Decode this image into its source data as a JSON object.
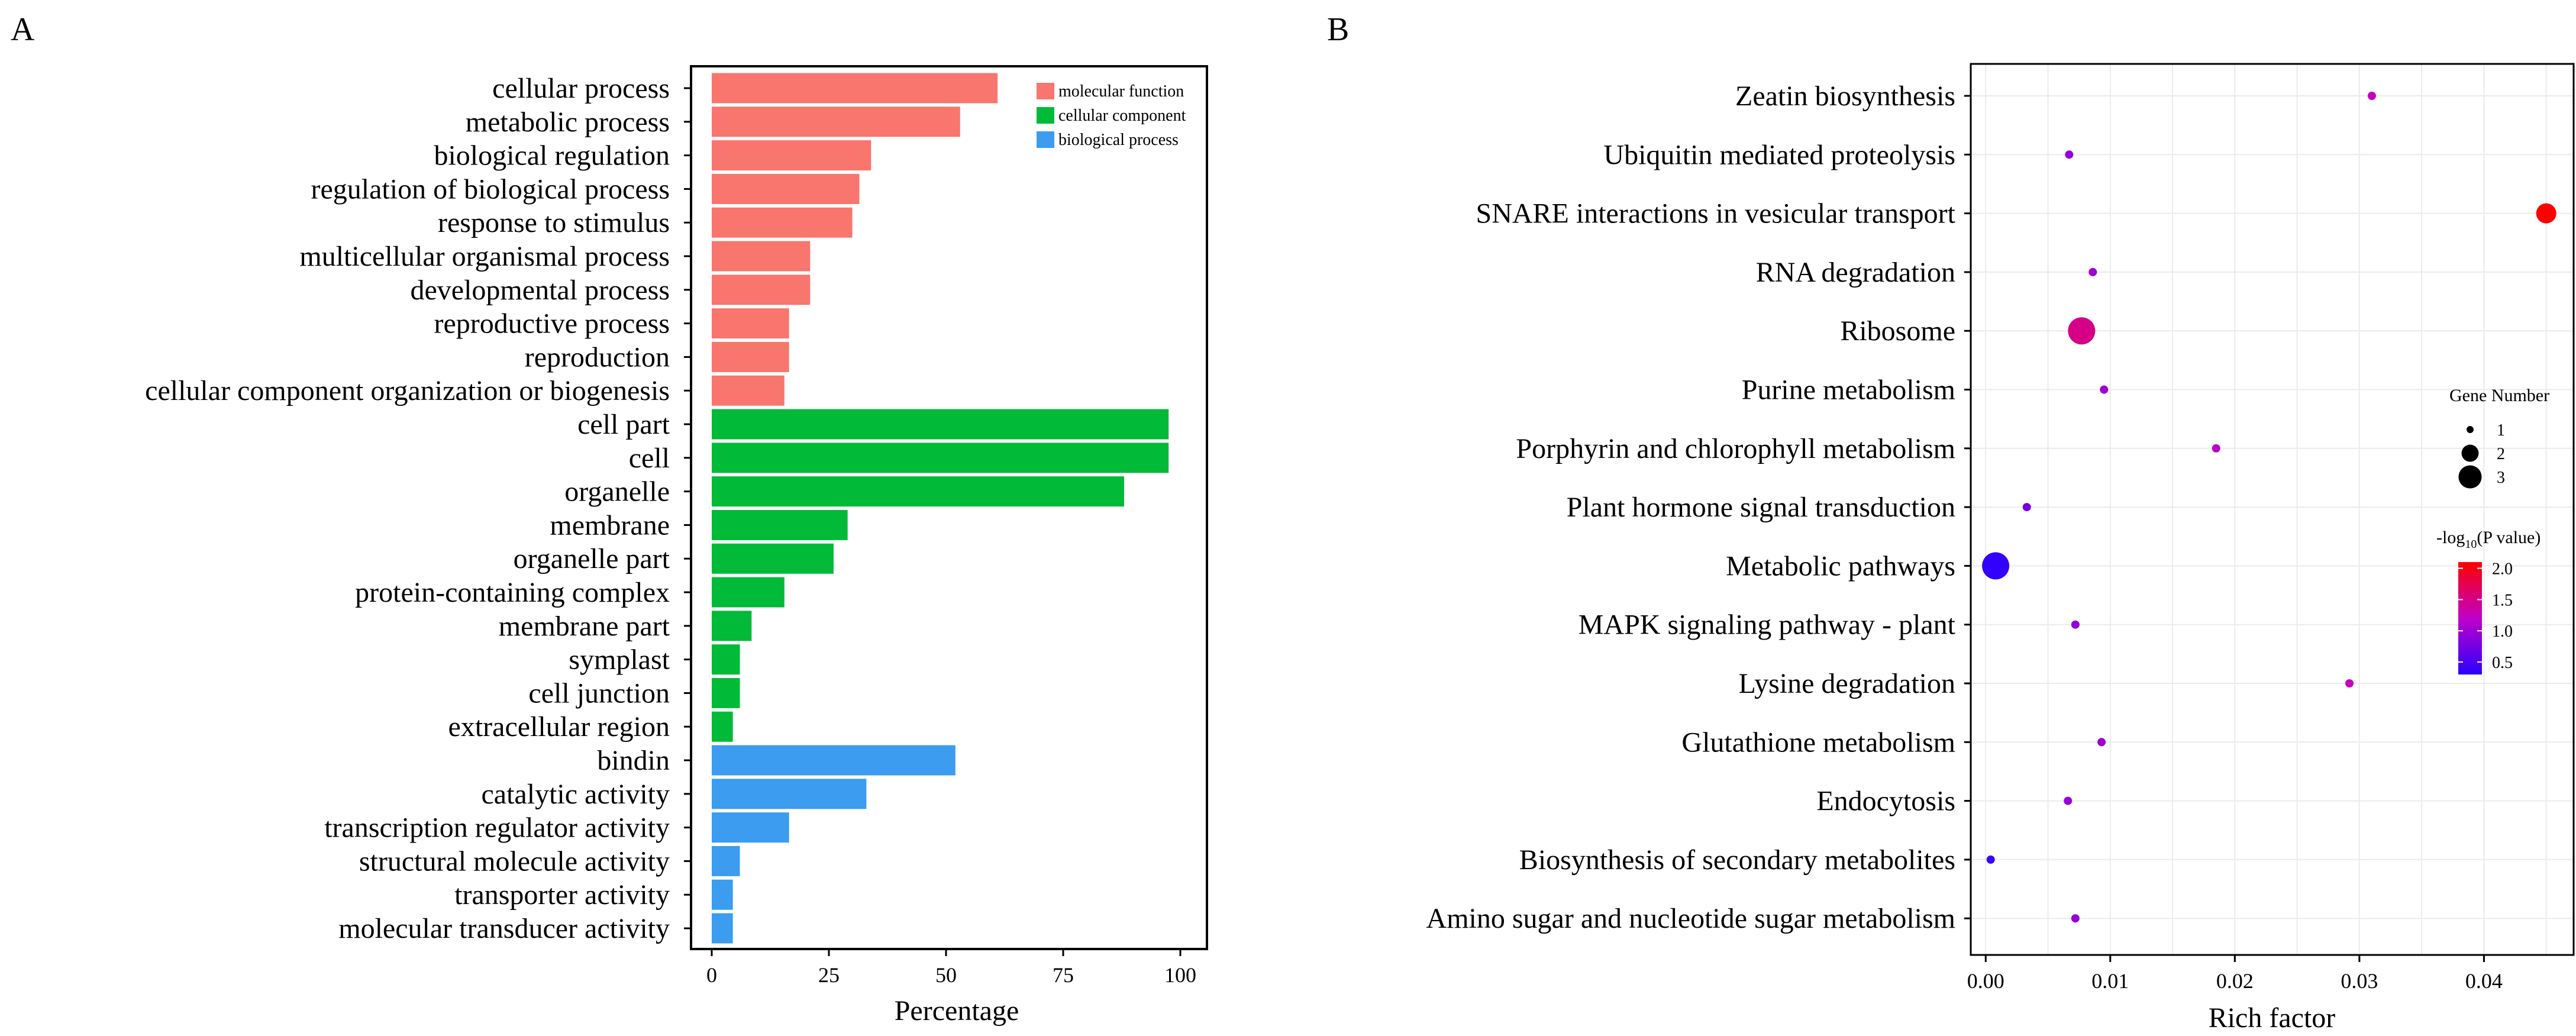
{
  "panels": {
    "a_letter": "A",
    "b_letter": "B"
  },
  "chart_data": [
    {
      "type": "bar",
      "orientation": "horizontal",
      "panel": "A",
      "xlabel": "Percentage",
      "xlim": [
        0,
        100
      ],
      "xticks": [
        0,
        25,
        50,
        75,
        100
      ],
      "legend": {
        "placement": "top-right",
        "entries": [
          {
            "label": "molecular function",
            "color": "#f8766d"
          },
          {
            "label": "cellular component",
            "color": "#00ba38"
          },
          {
            "label": "biological process",
            "color": "#3b9cf0"
          }
        ]
      },
      "bars": [
        {
          "category": "cellular process",
          "value": 61,
          "group": 0
        },
        {
          "category": "metabolic process",
          "value": 53,
          "group": 0
        },
        {
          "category": "biological regulation",
          "value": 34,
          "group": 0
        },
        {
          "category": "regulation of biological process",
          "value": 31.5,
          "group": 0
        },
        {
          "category": "response to stimulus",
          "value": 30,
          "group": 0
        },
        {
          "category": "multicellular organismal process",
          "value": 21,
          "group": 0
        },
        {
          "category": "developmental process",
          "value": 21,
          "group": 0
        },
        {
          "category": "reproductive process",
          "value": 16.5,
          "group": 0
        },
        {
          "category": "reproduction",
          "value": 16.5,
          "group": 0
        },
        {
          "category": "cellular component organization or biogenesis",
          "value": 15.5,
          "group": 0
        },
        {
          "category": "cell part",
          "value": 97.5,
          "group": 1
        },
        {
          "category": "cell",
          "value": 97.5,
          "group": 1
        },
        {
          "category": "organelle",
          "value": 88,
          "group": 1
        },
        {
          "category": "membrane",
          "value": 29,
          "group": 1
        },
        {
          "category": "organelle part",
          "value": 26,
          "group": 1
        },
        {
          "category": "protein-containing complex",
          "value": 15.5,
          "group": 1
        },
        {
          "category": "membrane part",
          "value": 8.5,
          "group": 1
        },
        {
          "category": "symplast",
          "value": 6,
          "group": 1
        },
        {
          "category": "cell junction",
          "value": 6,
          "group": 1
        },
        {
          "category": "extracellular region",
          "value": 4.5,
          "group": 1
        },
        {
          "category": "bindin",
          "value": 52,
          "group": 2
        },
        {
          "category": "catalytic activity",
          "value": 33,
          "group": 2
        },
        {
          "category": "transcription regulator activity",
          "value": 16.5,
          "group": 2
        },
        {
          "category": "structural molecule activity",
          "value": 6,
          "group": 2
        },
        {
          "category": "transporter activity",
          "value": 4.5,
          "group": 2
        },
        {
          "category": "molecular transducer activity",
          "value": 4.5,
          "group": 2
        }
      ]
    },
    {
      "type": "scatter",
      "panel": "B",
      "xlabel": "Rich factor",
      "xlim": [
        -0.0012,
        0.0472
      ],
      "xticks": [
        0.0,
        0.01,
        0.02,
        0.03,
        0.04
      ],
      "xtick_labels": [
        "0.00",
        "0.01",
        "0.02",
        "0.03",
        "0.04"
      ],
      "grid": true,
      "size_legend": {
        "title": "Gene Number",
        "entries": [
          {
            "label": "1",
            "value": 1
          },
          {
            "label": "2",
            "value": 2
          },
          {
            "label": "3",
            "value": 3
          }
        ]
      },
      "color_legend": {
        "title_prefix": "-log",
        "title_sub": "10",
        "title_suffix": "(P value)",
        "range": [
          0.3,
          2.1
        ],
        "ticks": [
          "2.0",
          "1.5",
          "1.0",
          "0.5"
        ],
        "tick_values": [
          2.0,
          1.5,
          1.0,
          0.5
        ],
        "low_color": "#2a00ff",
        "high_color": "#ff0000"
      },
      "highlight_color": "#e8141e",
      "points": [
        {
          "pathway": "Zeatin biosynthesis",
          "rich_factor": 0.031,
          "gene_number": 1,
          "neg_log10_p": 1.25,
          "highlight": true
        },
        {
          "pathway": "Ubiquitin mediated proteolysis",
          "rich_factor": 0.0067,
          "gene_number": 1,
          "neg_log10_p": 0.95
        },
        {
          "pathway": "SNARE interactions in vesicular transport",
          "rich_factor": 0.045,
          "gene_number": 2,
          "neg_log10_p": 2.1
        },
        {
          "pathway": "RNA degradation",
          "rich_factor": 0.0086,
          "gene_number": 1,
          "neg_log10_p": 1.0
        },
        {
          "pathway": "Ribosome",
          "rich_factor": 0.0077,
          "gene_number": 3,
          "neg_log10_p": 1.5
        },
        {
          "pathway": "Purine metabolism",
          "rich_factor": 0.0095,
          "gene_number": 1,
          "neg_log10_p": 1.0
        },
        {
          "pathway": "Porphyrin and chlorophyll metabolism",
          "rich_factor": 0.0185,
          "gene_number": 1,
          "neg_log10_p": 1.15
        },
        {
          "pathway": "Plant hormone signal transduction",
          "rich_factor": 0.0033,
          "gene_number": 1,
          "neg_log10_p": 0.75
        },
        {
          "pathway": "Metabolic pathways",
          "rich_factor": 0.0008,
          "gene_number": 3,
          "neg_log10_p": 0.35
        },
        {
          "pathway": "MAPK signaling pathway - plant",
          "rich_factor": 0.0072,
          "gene_number": 1,
          "neg_log10_p": 0.95
        },
        {
          "pathway": "Lysine degradation",
          "rich_factor": 0.0292,
          "gene_number": 1,
          "neg_log10_p": 1.25
        },
        {
          "pathway": "Glutathione metabolism",
          "rich_factor": 0.0093,
          "gene_number": 1,
          "neg_log10_p": 1.0
        },
        {
          "pathway": "Endocytosis",
          "rich_factor": 0.0066,
          "gene_number": 1,
          "neg_log10_p": 0.95
        },
        {
          "pathway": "Biosynthesis of secondary metabolites",
          "rich_factor": 0.0004,
          "gene_number": 1,
          "neg_log10_p": 0.4
        },
        {
          "pathway": "Amino sugar and nucleotide sugar metabolism",
          "rich_factor": 0.0072,
          "gene_number": 1,
          "neg_log10_p": 0.95
        }
      ]
    }
  ]
}
